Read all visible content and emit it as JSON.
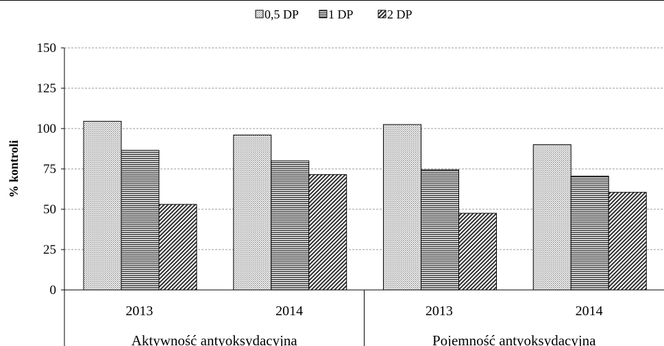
{
  "chart_data": {
    "type": "bar",
    "ylabel": "% kontroli",
    "ylim": [
      0,
      150
    ],
    "yticks": [
      0,
      25,
      50,
      75,
      100,
      125,
      150
    ],
    "grid": true,
    "legend_position": "top",
    "groups": [
      {
        "label": "Aktywność antyoksydacyjna",
        "categories": [
          "2013",
          "2014"
        ]
      },
      {
        "label": "Pojemność antyoksydacyjna",
        "categories": [
          "2013",
          "2014"
        ]
      }
    ],
    "series": [
      {
        "name": "0,5 DP",
        "pattern": "dots",
        "values": [
          104.5,
          96,
          102.5,
          90
        ]
      },
      {
        "name": "1 DP",
        "pattern": "horizontal-lines",
        "values": [
          86.5,
          80,
          74.5,
          70.5
        ]
      },
      {
        "name": "2 DP",
        "pattern": "diagonal-lines",
        "values": [
          53,
          71.5,
          47.5,
          60.5
        ]
      }
    ],
    "colors": {
      "bar_stroke": "#000000",
      "grid": "#999999",
      "background": "#ffffff"
    }
  }
}
